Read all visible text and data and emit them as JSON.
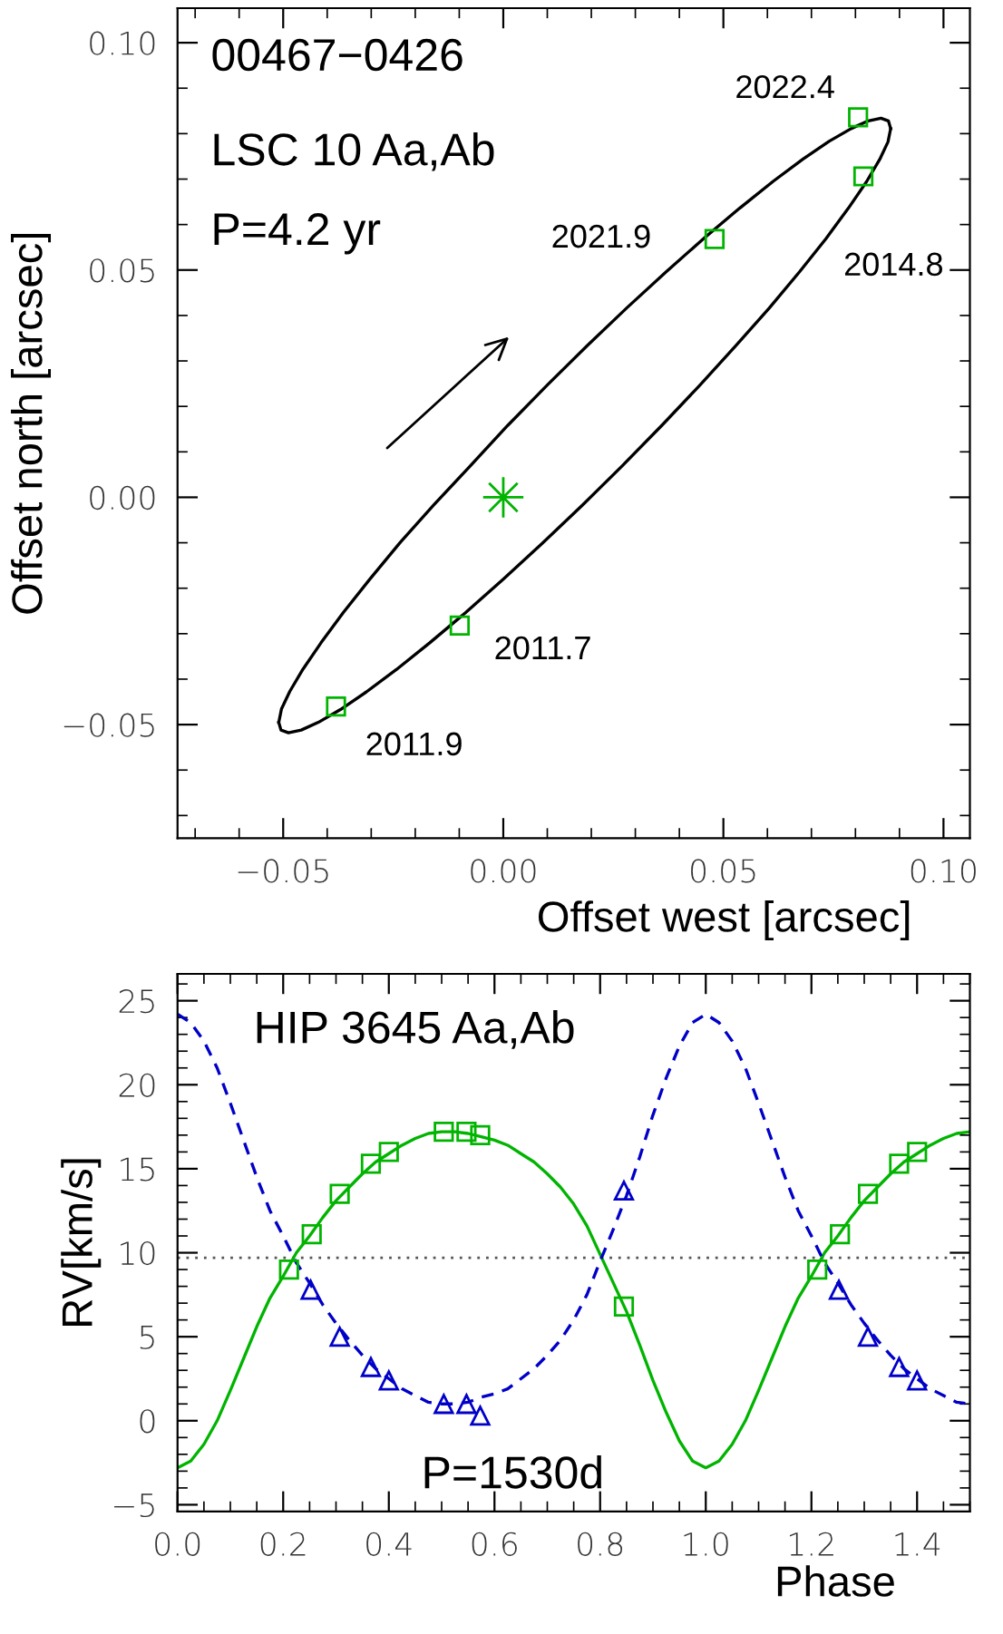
{
  "chart_data": [
    {
      "type": "scatter",
      "xlabel": "Offset west [arcsec]",
      "ylabel": "Offset north [arcsec]",
      "xlim": [
        -0.074,
        0.106
      ],
      "ylim": [
        -0.075,
        0.1076
      ],
      "xticks": [
        {
          "value": -0.05,
          "label": "−0.05"
        },
        {
          "value": 0,
          "label": "0.00"
        },
        {
          "value": 0.05,
          "label": "0.05"
        },
        {
          "value": 0.1,
          "label": "0.10"
        }
      ],
      "yticks": [
        {
          "value": -0.05,
          "label": "−0.05"
        },
        {
          "value": 0,
          "label": "0.00"
        },
        {
          "value": 0.05,
          "label": "0.05"
        },
        {
          "value": 0.1,
          "label": "0.10"
        }
      ],
      "series": [
        {
          "type": "line",
          "color": "#000000",
          "line_style": "solid",
          "marker": "none",
          "x": [
            0.088,
            0.0875,
            0.0858,
            0.0829,
            0.079,
            0.074,
            0.0681,
            0.0613,
            0.0537,
            0.0456,
            0.037,
            0.0281,
            0.019,
            0.01,
            0.001,
            -0.0076,
            -0.0158,
            -0.0234,
            -0.0303,
            -0.0363,
            -0.0414,
            -0.0455,
            -0.0485,
            -0.0504,
            -0.051
          ],
          "values": [
            0.0811,
            0.0828,
            0.0834,
            0.0828,
            0.0811,
            0.0783,
            0.0744,
            0.0695,
            0.0636,
            0.057,
            0.0496,
            0.0417,
            0.0333,
            0.0247,
            0.0158,
            0.0068,
            -0.0017,
            -0.0099,
            -0.018,
            -0.0253,
            -0.032,
            -0.0378,
            -0.0427,
            -0.0466,
            -0.0495
          ]
        },
        {
          "type": "line",
          "color": "#000000",
          "line_style": "solid",
          "marker": "none",
          "x": [
            -0.051,
            -0.0505,
            -0.0488,
            -0.0459,
            -0.042,
            -0.037,
            -0.0311,
            -0.0243,
            -0.0167,
            -0.0086,
            0.0,
            0.0089,
            0.018,
            0.027,
            0.036,
            0.0446,
            0.0528,
            0.0604,
            0.0673,
            0.0733,
            0.0784,
            0.0825,
            0.0855,
            0.0874,
            0.088
          ],
          "values": [
            -0.0495,
            -0.0512,
            -0.0518,
            -0.0512,
            -0.0495,
            -0.0467,
            -0.0428,
            -0.0379,
            -0.032,
            -0.0254,
            -0.018,
            -0.0101,
            -0.0017,
            0.0069,
            0.0158,
            0.0246,
            0.0333,
            0.0416,
            0.0496,
            0.0569,
            0.0636,
            0.0694,
            0.0743,
            0.0782,
            0.0811
          ]
        },
        {
          "color": "#00b400",
          "marker": "square",
          "x": [
            0.0806,
            0.048,
            0.0818,
            -0.0099,
            -0.038
          ],
          "values": [
            0.0836,
            0.0568,
            0.0706,
            -0.0282,
            -0.046
          ]
        },
        {
          "color": "#00b400",
          "marker": "star",
          "x": [
            0
          ],
          "values": [
            0
          ]
        }
      ],
      "annotations": [
        "00467−0426",
        "LSC 10 Aa,Ab",
        "P=4.2 yr",
        {
          "text": "2022.4",
          "x": 0.0806,
          "y": 0.0836
        },
        {
          "text": "2021.9",
          "x": 0.048,
          "y": 0.0568
        },
        {
          "text": "2014.8",
          "x": 0.0818,
          "y": 0.0706
        },
        {
          "text": "2011.7",
          "x": -0.0099,
          "y": -0.0282
        },
        {
          "text": "2011.9",
          "x": -0.038,
          "y": -0.046
        }
      ]
    },
    {
      "type": "line",
      "xlabel": "Phase",
      "ylabel": "RV[km/s]",
      "xlim": [
        0,
        1.5
      ],
      "ylim": [
        -5.4,
        26.6
      ],
      "xticks": [
        {
          "value": 0,
          "label": "0.0"
        },
        {
          "value": 0.2,
          "label": "0.2"
        },
        {
          "value": 0.4,
          "label": "0.4"
        },
        {
          "value": 0.6,
          "label": "0.6"
        },
        {
          "value": 0.8,
          "label": "0.8"
        },
        {
          "value": 1.0,
          "label": "1.0"
        },
        {
          "value": 1.2,
          "label": "1.2"
        },
        {
          "value": 1.4,
          "label": "1.4"
        }
      ],
      "yticks": [
        {
          "value": -5,
          "label": "−5"
        },
        0,
        5,
        10,
        15,
        20,
        25
      ],
      "ref_lines": [
        {
          "axis": "y",
          "value": 9.7,
          "color": "#555555",
          "line_style": "dotted"
        }
      ],
      "series": [
        {
          "color": "#00b400",
          "line_style": "solid",
          "marker": "none",
          "x": [
            0,
            0.025,
            0.05,
            0.075,
            0.1,
            0.125,
            0.15,
            0.175,
            0.2,
            0.225,
            0.25,
            0.275,
            0.3,
            0.325,
            0.35,
            0.375,
            0.4,
            0.425,
            0.45,
            0.475,
            0.5,
            0.525,
            0.55,
            0.575,
            0.6,
            0.625,
            0.65,
            0.675,
            0.7,
            0.725,
            0.75,
            0.775,
            0.8,
            0.825,
            0.85,
            0.875,
            0.9,
            0.925,
            0.95,
            0.975,
            1.0,
            1.025,
            1.05,
            1.075,
            1.1,
            1.125,
            1.15,
            1.175,
            1.2,
            1.225,
            1.25,
            1.275,
            1.3,
            1.325,
            1.35,
            1.375,
            1.4,
            1.425,
            1.45,
            1.475,
            1.5
          ],
          "values": [
            -2.8,
            -2.4,
            -1.4,
            0.0,
            1.8,
            3.7,
            5.6,
            7.3,
            8.6,
            10.0,
            11.0,
            12.1,
            13.1,
            13.9,
            14.7,
            15.4,
            15.9,
            16.4,
            16.8,
            17.1,
            17.2,
            17.2,
            17.1,
            16.9,
            16.7,
            16.4,
            15.9,
            15.4,
            14.7,
            13.9,
            12.9,
            11.6,
            9.9,
            8.2,
            6.5,
            4.5,
            2.4,
            0.5,
            -1.2,
            -2.4,
            -2.8,
            -2.4,
            -1.4,
            0.0,
            1.8,
            3.7,
            5.6,
            7.3,
            8.6,
            10.0,
            11.0,
            12.1,
            13.1,
            13.9,
            14.7,
            15.4,
            15.9,
            16.4,
            16.8,
            17.1,
            17.2
          ]
        },
        {
          "color": "#0000c8",
          "line_style": "dashed",
          "marker": "none",
          "x": [
            0,
            0.025,
            0.05,
            0.075,
            0.1,
            0.125,
            0.15,
            0.175,
            0.2,
            0.225,
            0.25,
            0.275,
            0.3,
            0.325,
            0.35,
            0.375,
            0.4,
            0.425,
            0.45,
            0.475,
            0.5,
            0.525,
            0.55,
            0.575,
            0.6,
            0.625,
            0.65,
            0.675,
            0.7,
            0.725,
            0.75,
            0.775,
            0.8,
            0.825,
            0.85,
            0.875,
            0.9,
            0.925,
            0.95,
            0.975,
            1.0,
            1.025,
            1.05,
            1.075,
            1.1,
            1.125,
            1.15,
            1.175,
            1.2,
            1.225,
            1.25,
            1.275,
            1.3,
            1.325,
            1.35,
            1.375,
            1.4,
            1.425,
            1.45,
            1.475,
            1.5
          ],
          "values": [
            24.2,
            23.7,
            22.6,
            21.0,
            18.9,
            16.7,
            14.5,
            12.5,
            11.0,
            9.4,
            8.2,
            6.9,
            5.8,
            4.8,
            3.9,
            3.1,
            2.5,
            1.9,
            1.5,
            1.1,
            1.0,
            1.0,
            1.1,
            1.4,
            1.6,
            1.9,
            2.5,
            3.1,
            3.9,
            4.8,
            6.0,
            7.5,
            9.5,
            11.4,
            13.4,
            15.7,
            18.2,
            20.4,
            22.3,
            23.7,
            24.2,
            23.7,
            22.6,
            21.0,
            18.9,
            16.7,
            14.5,
            12.5,
            11.0,
            9.4,
            8.2,
            6.9,
            5.8,
            4.8,
            3.9,
            3.1,
            2.5,
            1.9,
            1.5,
            1.1,
            1.0
          ]
        },
        {
          "type": "scatter",
          "color": "#00b400",
          "marker": "square",
          "x": [
            0.211,
            0.254,
            0.307,
            0.366,
            0.4,
            0.504,
            0.547,
            0.573,
            0.845,
            1.211,
            1.254,
            1.307,
            1.366,
            1.4
          ],
          "values": [
            9.0,
            11.1,
            13.5,
            15.3,
            16.0,
            17.2,
            17.2,
            17.0,
            6.8,
            9.0,
            11.1,
            13.5,
            15.3,
            16.0
          ]
        },
        {
          "type": "scatter",
          "color": "#0000c8",
          "marker": "triangle",
          "x": [
            0.252,
            0.307,
            0.366,
            0.4,
            0.504,
            0.547,
            0.573,
            0.845,
            1.252,
            1.307,
            1.366,
            1.4
          ],
          "values": [
            7.8,
            5.0,
            3.2,
            2.4,
            1.0,
            1.0,
            0.3,
            13.7,
            7.8,
            5.0,
            3.2,
            2.4
          ]
        }
      ],
      "annotations": [
        "HIP 3645 Aa,Ab",
        "P=1530d"
      ]
    }
  ]
}
